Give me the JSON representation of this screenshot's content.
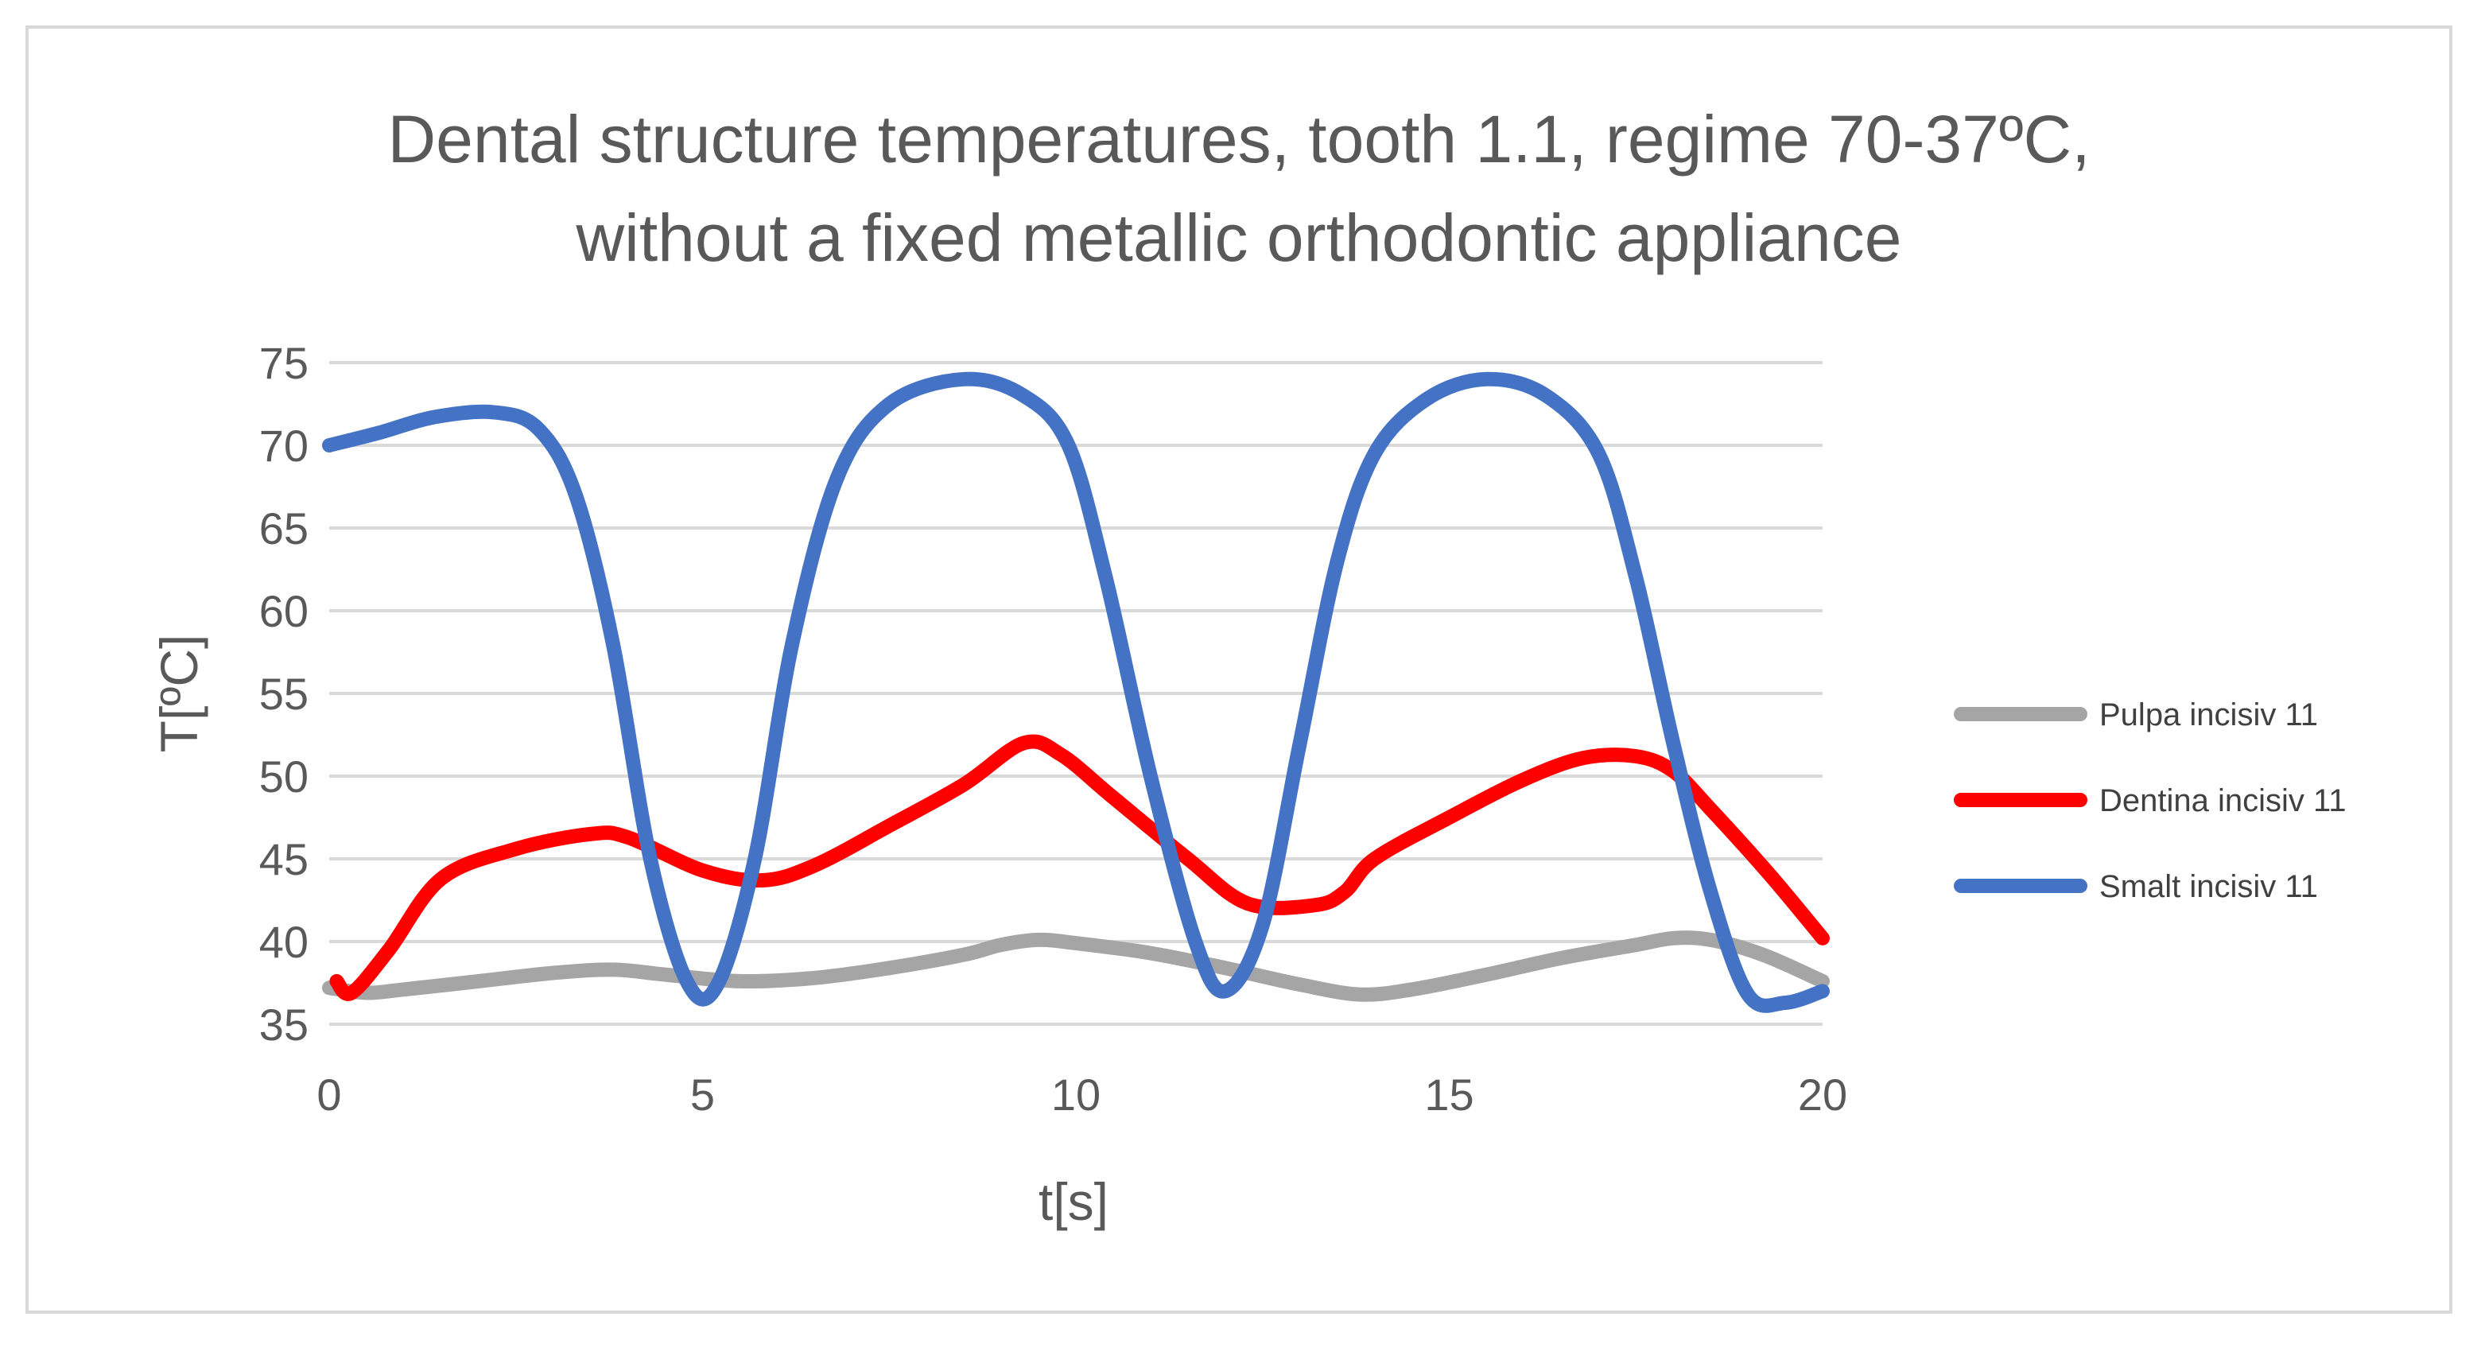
{
  "chart_data": {
    "type": "line",
    "title_line1": "Dental structure temperatures, tooth 1.1, regime 70-37ºC,",
    "title_line2": "without a fixed metallic orthodontic appliance",
    "xlabel": "t[s]",
    "ylabel": "T[ºC]",
    "xlim": [
      0,
      20
    ],
    "ylim": [
      35,
      75
    ],
    "x_ticks": [
      "0",
      "5",
      "10",
      "15",
      "20"
    ],
    "y_ticks": [
      "35",
      "40",
      "45",
      "50",
      "55",
      "60",
      "65",
      "70",
      "75"
    ],
    "grid": "horizontal",
    "legend_position": "right",
    "series": [
      {
        "name": "Pulpa incisiv 11",
        "color": "#a5a5a5",
        "points": [
          [
            0,
            37.2
          ],
          [
            0.5,
            36.9
          ],
          [
            1,
            37.1
          ],
          [
            2,
            37.6
          ],
          [
            3,
            38.1
          ],
          [
            3.8,
            38.3
          ],
          [
            4.5,
            38.0
          ],
          [
            5.5,
            37.6
          ],
          [
            6.5,
            37.8
          ],
          [
            7.5,
            38.4
          ],
          [
            8.5,
            39.2
          ],
          [
            9,
            39.8
          ],
          [
            9.5,
            40.1
          ],
          [
            10,
            39.9
          ],
          [
            11,
            39.3
          ],
          [
            12,
            38.4
          ],
          [
            13,
            37.4
          ],
          [
            13.8,
            36.8
          ],
          [
            14.5,
            37.1
          ],
          [
            15.5,
            38.0
          ],
          [
            16.5,
            39.0
          ],
          [
            17.5,
            39.8
          ],
          [
            18,
            40.2
          ],
          [
            18.5,
            40.1
          ],
          [
            19.2,
            39.2
          ],
          [
            20,
            37.6
          ]
        ]
      },
      {
        "name": "Dentina incisiv 11",
        "color": "#ff0000",
        "points": [
          [
            0.1,
            37.6
          ],
          [
            0.3,
            36.9
          ],
          [
            0.8,
            39.5
          ],
          [
            1.5,
            43.8
          ],
          [
            2.5,
            45.6
          ],
          [
            3.5,
            46.5
          ],
          [
            4,
            46.3
          ],
          [
            5,
            44.3
          ],
          [
            5.8,
            43.7
          ],
          [
            6.5,
            44.6
          ],
          [
            7.5,
            47.0
          ],
          [
            8.5,
            49.5
          ],
          [
            9.3,
            52.0
          ],
          [
            9.8,
            51.3
          ],
          [
            10.5,
            48.7
          ],
          [
            11.5,
            45.0
          ],
          [
            12.3,
            42.3
          ],
          [
            13.2,
            42.2
          ],
          [
            13.6,
            43.0
          ],
          [
            14,
            45.0
          ],
          [
            15,
            47.5
          ],
          [
            16,
            49.8
          ],
          [
            16.8,
            51.1
          ],
          [
            17.5,
            51.2
          ],
          [
            18,
            50.3
          ],
          [
            18.5,
            48.0
          ],
          [
            19.3,
            44.0
          ],
          [
            20,
            40.2
          ]
        ]
      },
      {
        "name": "Smalt incisiv 11",
        "color": "#4472c4",
        "points": [
          [
            0,
            70.0
          ],
          [
            0.7,
            70.8
          ],
          [
            1.4,
            71.7
          ],
          [
            2.2,
            72.0
          ],
          [
            2.8,
            71.0
          ],
          [
            3.3,
            67.0
          ],
          [
            3.8,
            58.0
          ],
          [
            4.3,
            45.0
          ],
          [
            4.8,
            37.5
          ],
          [
            5.2,
            37.4
          ],
          [
            5.7,
            45.0
          ],
          [
            6.2,
            58.0
          ],
          [
            6.8,
            68.0
          ],
          [
            7.5,
            72.5
          ],
          [
            8.5,
            74.0
          ],
          [
            9.3,
            73.0
          ],
          [
            9.9,
            70.0
          ],
          [
            10.4,
            62.0
          ],
          [
            11,
            50.0
          ],
          [
            11.6,
            40.0
          ],
          [
            12,
            37.0
          ],
          [
            12.5,
            41.0
          ],
          [
            13,
            52.0
          ],
          [
            13.5,
            63.0
          ],
          [
            14,
            69.5
          ],
          [
            14.7,
            72.8
          ],
          [
            15.5,
            74.0
          ],
          [
            16.3,
            73.0
          ],
          [
            17,
            69.5
          ],
          [
            17.5,
            62.0
          ],
          [
            18,
            52.0
          ],
          [
            18.5,
            43.0
          ],
          [
            19,
            36.8
          ],
          [
            19.5,
            36.3
          ],
          [
            20,
            37.0
          ]
        ]
      }
    ]
  }
}
